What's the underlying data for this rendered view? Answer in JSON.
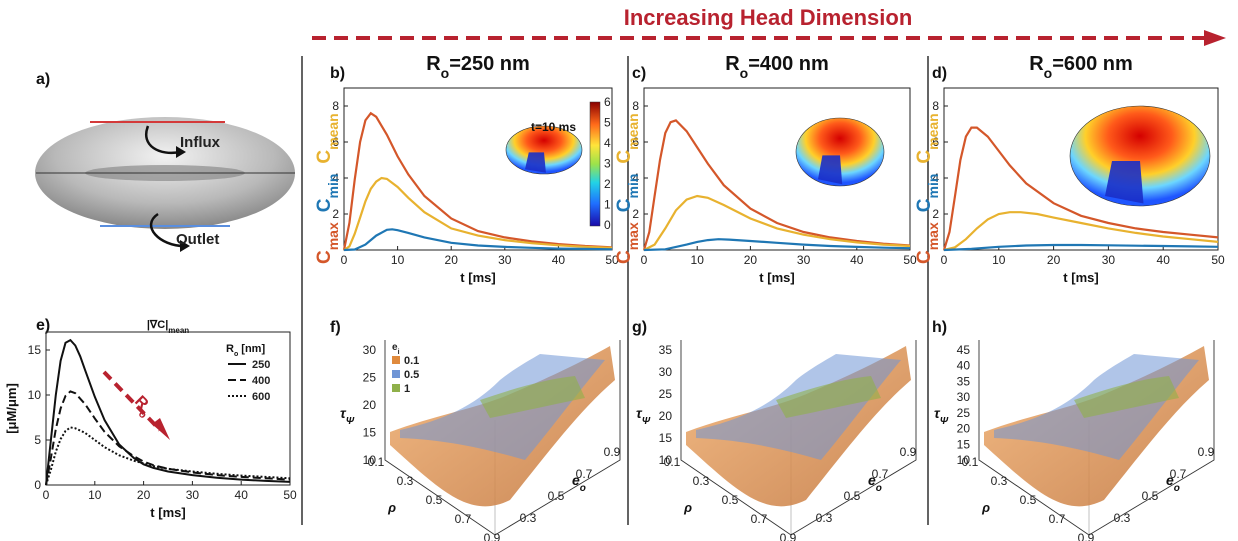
{
  "header": {
    "text": "Increasing Head Dimension",
    "color": "#b8222f"
  },
  "panel_a": {
    "label": "a)",
    "influx_label": "Influx",
    "outlet_label": "Outlet"
  },
  "curve_colors": {
    "c_max": "#d4572a",
    "c_mean": "#e8b22f",
    "c_min": "#1f77b4"
  },
  "curve_labels": {
    "c_max": {
      "main": "C",
      "sub": "max"
    },
    "c_min": {
      "main": "C",
      "sub": "min"
    },
    "c_mean": {
      "main": "C",
      "sub": "mean"
    }
  },
  "colorbar": {
    "title": "t=10 ms",
    "ticks": [
      "6",
      "5",
      "4",
      "3",
      "2",
      "1",
      "0"
    ]
  },
  "top_xlabel": "t [ms]",
  "chart_data": [
    {
      "id": "b",
      "label": "b)",
      "type": "line",
      "title": {
        "main": "R",
        "sub": "o",
        "rest": "=250 nm"
      },
      "xlabel": "t [ms]",
      "xlim": [
        0,
        50
      ],
      "ylim": [
        0,
        9
      ],
      "xticks": [
        0,
        10,
        20,
        30,
        40,
        50
      ],
      "yticks": [
        2,
        4,
        6,
        8
      ],
      "series": [
        {
          "name": "C_max",
          "x": [
            0,
            1,
            2,
            3,
            4,
            5,
            6,
            8,
            10,
            12,
            15,
            20,
            25,
            30,
            35,
            40,
            45,
            50
          ],
          "y": [
            0,
            1.5,
            3.9,
            6.0,
            7.2,
            7.6,
            7.4,
            6.4,
            5.2,
            4.2,
            3.0,
            1.75,
            1.05,
            0.7,
            0.48,
            0.33,
            0.22,
            0.15
          ]
        },
        {
          "name": "C_mean",
          "x": [
            0,
            1,
            2,
            3,
            4,
            5,
            6,
            7,
            8,
            10,
            12,
            15,
            20,
            25,
            30,
            35,
            40,
            45,
            50
          ],
          "y": [
            0,
            0.2,
            0.9,
            1.8,
            2.7,
            3.4,
            3.8,
            4.0,
            3.95,
            3.5,
            2.9,
            2.1,
            1.2,
            0.8,
            0.55,
            0.38,
            0.26,
            0.18,
            0.12
          ]
        },
        {
          "name": "C_min",
          "x": [
            0,
            2,
            4,
            6,
            8,
            9,
            10,
            12,
            15,
            20,
            25,
            30,
            35,
            40,
            45,
            50
          ],
          "y": [
            0,
            0.03,
            0.3,
            0.8,
            1.12,
            1.15,
            1.1,
            0.95,
            0.7,
            0.4,
            0.25,
            0.17,
            0.12,
            0.08,
            0.06,
            0.04
          ]
        }
      ]
    },
    {
      "id": "c",
      "label": "c)",
      "type": "line",
      "title": {
        "main": "R",
        "sub": "o",
        "rest": "=400 nm"
      },
      "xlabel": "t [ms]",
      "xlim": [
        0,
        50
      ],
      "ylim": [
        0,
        9
      ],
      "xticks": [
        0,
        10,
        20,
        30,
        40,
        50
      ],
      "yticks": [
        2,
        4,
        6,
        8
      ],
      "series": [
        {
          "name": "C_max",
          "x": [
            0,
            1,
            2,
            3,
            4,
            5,
            6,
            8,
            10,
            12,
            15,
            20,
            25,
            30,
            35,
            40,
            45,
            50
          ],
          "y": [
            0,
            1.0,
            3.0,
            5.0,
            6.5,
            7.1,
            7.2,
            6.6,
            5.7,
            4.8,
            3.6,
            2.3,
            1.5,
            1.0,
            0.7,
            0.5,
            0.35,
            0.25
          ]
        },
        {
          "name": "C_mean",
          "x": [
            0,
            2,
            4,
            6,
            8,
            10,
            12,
            15,
            20,
            25,
            30,
            35,
            40,
            45,
            50
          ],
          "y": [
            0,
            0.3,
            1.2,
            2.2,
            2.8,
            3.0,
            2.9,
            2.5,
            1.75,
            1.2,
            0.85,
            0.6,
            0.42,
            0.3,
            0.22
          ]
        },
        {
          "name": "C_min",
          "x": [
            0,
            4,
            8,
            10,
            12,
            14,
            16,
            20,
            25,
            30,
            35,
            40,
            45,
            50
          ],
          "y": [
            0,
            0.04,
            0.3,
            0.45,
            0.55,
            0.6,
            0.58,
            0.5,
            0.4,
            0.3,
            0.22,
            0.17,
            0.13,
            0.1
          ]
        }
      ]
    },
    {
      "id": "d",
      "label": "d)",
      "type": "line",
      "title": {
        "main": "R",
        "sub": "o",
        "rest": "=600 nm"
      },
      "xlabel": "t [ms]",
      "xlim": [
        0,
        50
      ],
      "ylim": [
        0,
        9
      ],
      "xticks": [
        0,
        10,
        20,
        30,
        40,
        50
      ],
      "yticks": [
        2,
        4,
        6,
        8
      ],
      "series": [
        {
          "name": "C_max",
          "x": [
            0,
            1,
            2,
            3,
            4,
            5,
            6,
            8,
            10,
            12,
            15,
            20,
            25,
            30,
            35,
            40,
            45,
            50
          ],
          "y": [
            0,
            1.0,
            3.0,
            5.0,
            6.3,
            6.8,
            6.8,
            6.3,
            5.5,
            4.7,
            3.7,
            2.6,
            1.9,
            1.5,
            1.2,
            1.0,
            0.85,
            0.7
          ]
        },
        {
          "name": "C_mean",
          "x": [
            0,
            2,
            4,
            6,
            8,
            10,
            12,
            14,
            17,
            20,
            25,
            30,
            35,
            40,
            45,
            50
          ],
          "y": [
            0,
            0.15,
            0.6,
            1.2,
            1.7,
            2.0,
            2.1,
            2.1,
            2.0,
            1.8,
            1.5,
            1.2,
            0.95,
            0.75,
            0.6,
            0.45
          ]
        },
        {
          "name": "C_min",
          "x": [
            0,
            5,
            10,
            15,
            20,
            25,
            30,
            35,
            40,
            45,
            50
          ],
          "y": [
            0,
            0.06,
            0.18,
            0.25,
            0.28,
            0.28,
            0.26,
            0.24,
            0.22,
            0.2,
            0.18
          ]
        }
      ]
    },
    {
      "id": "e",
      "label": "e)",
      "type": "line",
      "title": "|∇C|",
      "title_sub": "mean",
      "xlabel": "t [ms]",
      "ylabel": "[μM/μm]",
      "xlim": [
        0,
        50
      ],
      "ylim": [
        0,
        17
      ],
      "xticks": [
        0,
        10,
        20,
        30,
        40,
        50
      ],
      "yticks": [
        0,
        5,
        10,
        15
      ],
      "legend": {
        "title_main": "R",
        "title_sub": "o",
        "title_rest": " [nm]",
        "entries": [
          "250",
          "400",
          "600"
        ]
      },
      "arrow_label": {
        "main": "R",
        "sub": "o"
      },
      "series": [
        {
          "name": "250",
          "x": [
            0,
            1,
            2,
            3,
            4,
            5,
            6,
            7,
            8,
            10,
            12,
            15,
            18,
            20,
            22,
            25,
            30,
            35,
            40,
            45,
            50
          ],
          "y": [
            0,
            5,
            10,
            13.8,
            15.8,
            16.1,
            15.5,
            14.3,
            12.8,
            9.8,
            7.2,
            4.5,
            3.0,
            2.3,
            1.9,
            1.5,
            1.1,
            0.8,
            0.6,
            0.45,
            0.35
          ]
        },
        {
          "name": "400",
          "x": [
            0,
            1,
            2,
            3,
            4,
            5,
            6,
            8,
            10,
            12,
            15,
            18,
            20,
            22,
            25,
            30,
            35,
            40,
            45,
            50
          ],
          "y": [
            0,
            3,
            6.2,
            8.5,
            9.9,
            10.4,
            10.2,
            9.0,
            7.4,
            5.9,
            4.3,
            3.2,
            2.6,
            2.2,
            1.8,
            1.4,
            1.1,
            0.9,
            0.75,
            0.6
          ]
        },
        {
          "name": "600",
          "x": [
            0,
            1,
            2,
            3,
            4,
            5,
            6,
            8,
            10,
            12,
            15,
            18,
            20,
            22,
            25,
            30,
            35,
            40,
            45,
            50
          ],
          "y": [
            0,
            1.7,
            3.7,
            5.1,
            6.0,
            6.4,
            6.3,
            5.8,
            5.0,
            4.2,
            3.3,
            2.7,
            2.4,
            2.1,
            1.8,
            1.5,
            1.25,
            1.05,
            0.9,
            0.75
          ]
        }
      ]
    },
    {
      "id": "f",
      "label": "f)",
      "type": "surface3d",
      "zlabel": "τ",
      "zlabel_sub": "Ψ",
      "zticks": [
        "30",
        "25",
        "20",
        "15",
        "10"
      ],
      "xlabel": "ρ",
      "xticks": [
        "0.1",
        "0.3",
        "0.5",
        "0.7",
        "0.9"
      ],
      "ylabel": "e",
      "ylabel_sub": "o",
      "yticks": [
        "0.3",
        "0.5",
        "0.7",
        "0.9"
      ],
      "legend": {
        "title": "e",
        "title_sub": "i",
        "entries": [
          "0.1",
          "0.5",
          "1"
        ],
        "colors": [
          "#e08a3c",
          "#6f95d6",
          "#8fb04a"
        ]
      }
    },
    {
      "id": "g",
      "label": "g)",
      "type": "surface3d",
      "zlabel": "τ",
      "zlabel_sub": "Ψ",
      "zticks": [
        "35",
        "30",
        "25",
        "20",
        "15",
        "10"
      ],
      "xlabel": "ρ",
      "xticks": [
        "0.1",
        "0.3",
        "0.5",
        "0.7",
        "0.9"
      ],
      "ylabel": "e",
      "ylabel_sub": "o",
      "yticks": [
        "0.3",
        "0.5",
        "0.7",
        "0.9"
      ]
    },
    {
      "id": "h",
      "label": "h)",
      "type": "surface3d",
      "zlabel": "τ",
      "zlabel_sub": "Ψ",
      "zticks": [
        "45",
        "40",
        "35",
        "30",
        "25",
        "20",
        "15",
        "10"
      ],
      "xlabel": "ρ",
      "xticks": [
        "0.1",
        "0.3",
        "0.5",
        "0.7",
        "0.9"
      ],
      "ylabel": "e",
      "ylabel_sub": "o",
      "yticks": [
        "0.3",
        "0.5",
        "0.7",
        "0.9"
      ]
    }
  ]
}
